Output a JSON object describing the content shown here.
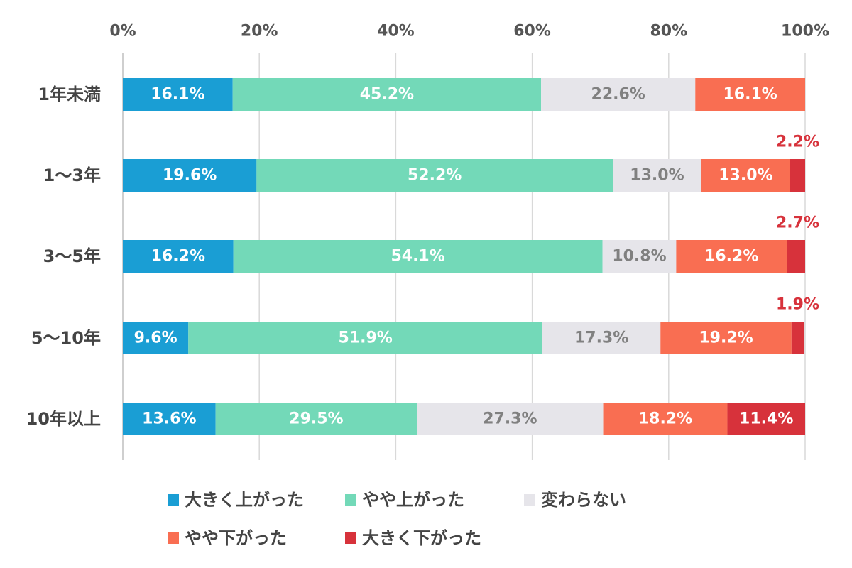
{
  "chart_data": {
    "type": "bar",
    "orientation": "horizontal",
    "stacked": "percent",
    "categories": [
      "1年未満",
      "1〜3年",
      "3〜5年",
      "5〜10年",
      "10年以上"
    ],
    "xlim": [
      0,
      100
    ],
    "x_ticks": [
      "0%",
      "20%",
      "40%",
      "60%",
      "80%",
      "100%"
    ],
    "x_tick_values": [
      0,
      20,
      40,
      60,
      80,
      100
    ],
    "x_axis_position": "top",
    "grid": true,
    "legend_position": "bottom",
    "series": [
      {
        "name": "大きく上がった",
        "color": "#1a9ed4",
        "label_color": "#ffffff",
        "values": [
          16.1,
          19.6,
          16.2,
          9.6,
          13.6
        ],
        "labels": [
          "16.1%",
          "19.6%",
          "16.2%",
          "9.6%",
          "13.6%"
        ]
      },
      {
        "name": "やや上がった",
        "color": "#73d9b8",
        "label_color": "#ffffff",
        "values": [
          45.2,
          52.2,
          54.1,
          51.9,
          29.5
        ],
        "labels": [
          "45.2%",
          "52.2%",
          "54.1%",
          "51.9%",
          "29.5%"
        ]
      },
      {
        "name": "変わらない",
        "color": "#e6e5ea",
        "label_color": "#808080",
        "values": [
          22.6,
          13.0,
          10.8,
          17.3,
          27.3
        ],
        "labels": [
          "22.6%",
          "13.0%",
          "10.8%",
          "17.3%",
          "27.3%"
        ]
      },
      {
        "name": "やや下がった",
        "color": "#f96e52",
        "label_color": "#ffffff",
        "values": [
          16.1,
          13.0,
          16.2,
          19.2,
          18.2
        ],
        "labels": [
          "16.1%",
          "13.0%",
          "16.2%",
          "19.2%",
          "18.2%"
        ]
      },
      {
        "name": "大きく下がった",
        "color": "#d7323b",
        "label_color": "#ffffff",
        "values": [
          0,
          2.2,
          2.7,
          1.9,
          11.4
        ],
        "labels": [
          "",
          "2.2%",
          "2.7%",
          "1.9%",
          "11.4%"
        ]
      }
    ]
  }
}
